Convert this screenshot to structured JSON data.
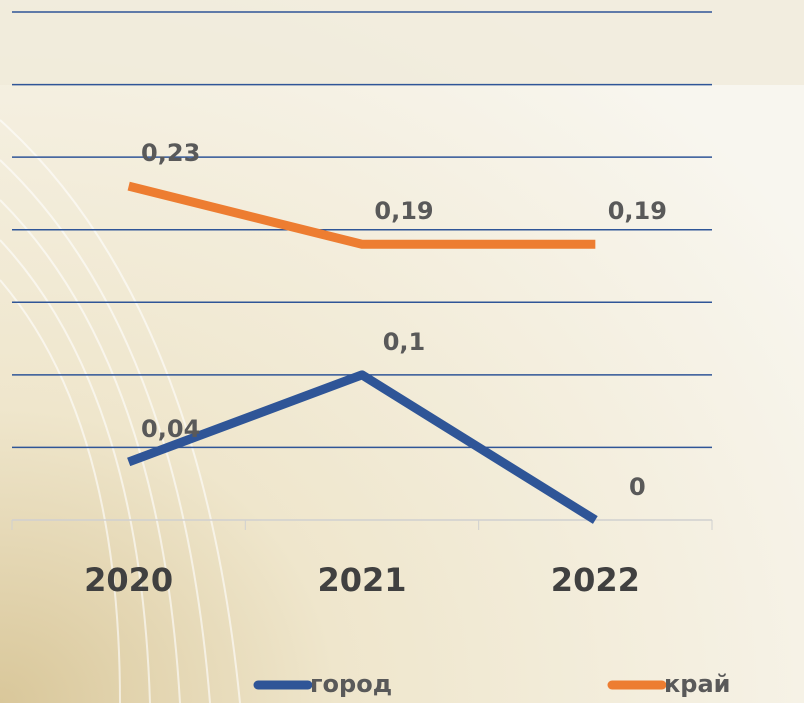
{
  "chart_data": {
    "type": "line",
    "categories": [
      "2020",
      "2021",
      "2022"
    ],
    "series": [
      {
        "name": "город",
        "color": "#2f5597",
        "values": [
          0.04,
          0.1,
          0
        ],
        "value_labels": [
          "0,04",
          "0,1",
          "0"
        ]
      },
      {
        "name": "край",
        "color": "#ed7d31",
        "values": [
          0.23,
          0.19,
          0.19
        ],
        "value_labels": [
          "0,23",
          "0,19",
          "0,19"
        ]
      }
    ],
    "ylim": [
      0,
      0.35
    ],
    "yticks": [
      0,
      0.05,
      0.1,
      0.15,
      0.2,
      0.25,
      0.3,
      0.35
    ],
    "grid": true
  }
}
